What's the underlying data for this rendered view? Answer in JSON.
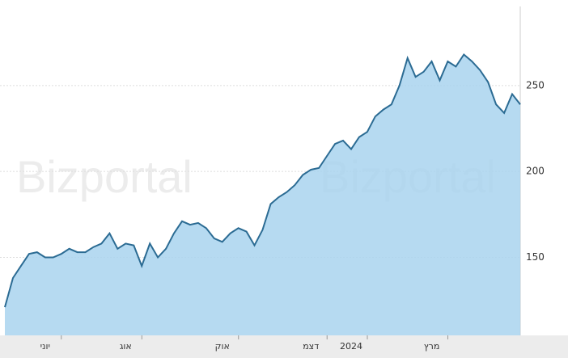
{
  "chart_data": {
    "type": "area",
    "watermark": "Bizportal",
    "values": [
      121,
      138,
      145,
      152,
      153,
      150,
      150,
      152,
      155,
      153,
      153,
      156,
      158,
      164,
      155,
      158,
      157,
      145,
      158,
      150,
      155,
      164,
      171,
      169,
      170,
      167,
      161,
      159,
      164,
      167,
      165,
      157,
      166,
      181,
      185,
      188,
      192,
      198,
      201,
      202,
      209,
      216,
      218,
      213,
      220,
      223,
      232,
      236,
      239,
      250,
      266,
      255,
      258,
      264,
      253,
      264,
      261,
      268,
      264,
      259,
      252,
      239,
      234,
      245,
      239
    ],
    "xlim": [
      0,
      64
    ],
    "xticks": [
      {
        "value": 5,
        "label": "יוני"
      },
      {
        "value": 15,
        "label": "אוג"
      },
      {
        "value": 27,
        "label": "אוק"
      },
      {
        "value": 38,
        "label": "דצמ"
      },
      {
        "value": 43,
        "label": "2024"
      },
      {
        "value": 53,
        "label": "מרץ"
      }
    ],
    "ylim": [
      104.6,
      296
    ],
    "yticks": [
      150,
      200,
      250
    ],
    "color": "#a9d3ee",
    "line_color": "#2b6b93",
    "grid": true
  }
}
